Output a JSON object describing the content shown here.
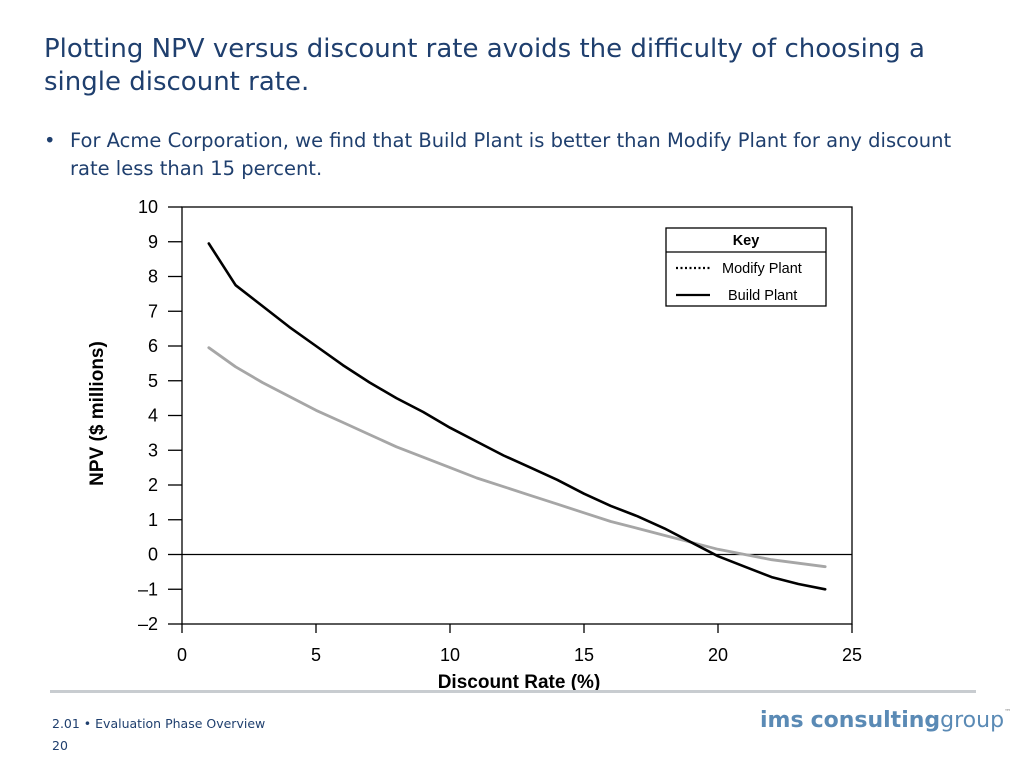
{
  "slide": {
    "title": "Plotting NPV versus discount rate avoids the difficulty of choosing a single discount rate.",
    "bullet_symbol": "•",
    "bullet": "For Acme Corporation, we find that Build Plant is better than Modify Plant for any discount rate less than 15 percent."
  },
  "footer": {
    "section": "2.01 • Evaluation Phase Overview",
    "page": "20",
    "logo_parts": [
      "ims",
      "consulting",
      "group"
    ],
    "logo_mark": "™"
  },
  "colors": {
    "title": "#1f3f6e",
    "build_plant": "#000000",
    "modify_plant": "#a6a6a6",
    "divider": "#c8ccd0",
    "logo": "#5a8ab5"
  },
  "chart_data": {
    "type": "line",
    "xlabel": "Discount Rate (%)",
    "ylabel": "NPV ($ millions)",
    "xlim": [
      0,
      25
    ],
    "ylim": [
      -2,
      10
    ],
    "x_ticks": [
      0,
      5,
      10,
      15,
      20,
      25
    ],
    "x_tick_labels": [
      "0",
      "5",
      "10",
      "15",
      "20",
      "25"
    ],
    "y_ticks": [
      10,
      9,
      8,
      7,
      6,
      5,
      4,
      3,
      2,
      1,
      0,
      -1,
      -2
    ],
    "y_tick_labels": [
      "10",
      "9",
      "8",
      "7",
      "6",
      "5",
      "4",
      "3",
      "2",
      "1",
      "0",
      "–1",
      "–2"
    ],
    "zero_line": true,
    "grid": false,
    "legend": {
      "title": "Key",
      "position": "top-right",
      "entries": [
        {
          "name": "Modify Plant",
          "style": "dotted"
        },
        {
          "name": "Build Plant",
          "style": "solid"
        }
      ]
    },
    "series": [
      {
        "name": "Build Plant",
        "x": [
          1,
          2,
          3,
          4,
          5,
          6,
          7,
          8,
          9,
          10,
          11,
          12,
          13,
          14,
          15,
          16,
          17,
          18,
          19,
          20,
          21,
          22,
          23,
          24
        ],
        "y": [
          8.95,
          7.75,
          7.15,
          6.55,
          6.0,
          5.45,
          4.95,
          4.5,
          4.1,
          3.65,
          3.25,
          2.85,
          2.5,
          2.15,
          1.75,
          1.4,
          1.1,
          0.75,
          0.35,
          -0.05,
          -0.35,
          -0.65,
          -0.85,
          -1.0
        ]
      },
      {
        "name": "Modify Plant",
        "x": [
          1,
          2,
          3,
          4,
          5,
          6,
          7,
          8,
          9,
          10,
          11,
          12,
          13,
          14,
          15,
          16,
          17,
          18,
          19,
          20,
          21,
          22,
          23,
          24
        ],
        "y": [
          5.95,
          5.4,
          4.95,
          4.55,
          4.15,
          3.8,
          3.45,
          3.1,
          2.8,
          2.5,
          2.2,
          1.95,
          1.7,
          1.45,
          1.2,
          0.95,
          0.75,
          0.55,
          0.35,
          0.15,
          0.0,
          -0.15,
          -0.25,
          -0.35
        ]
      }
    ]
  }
}
